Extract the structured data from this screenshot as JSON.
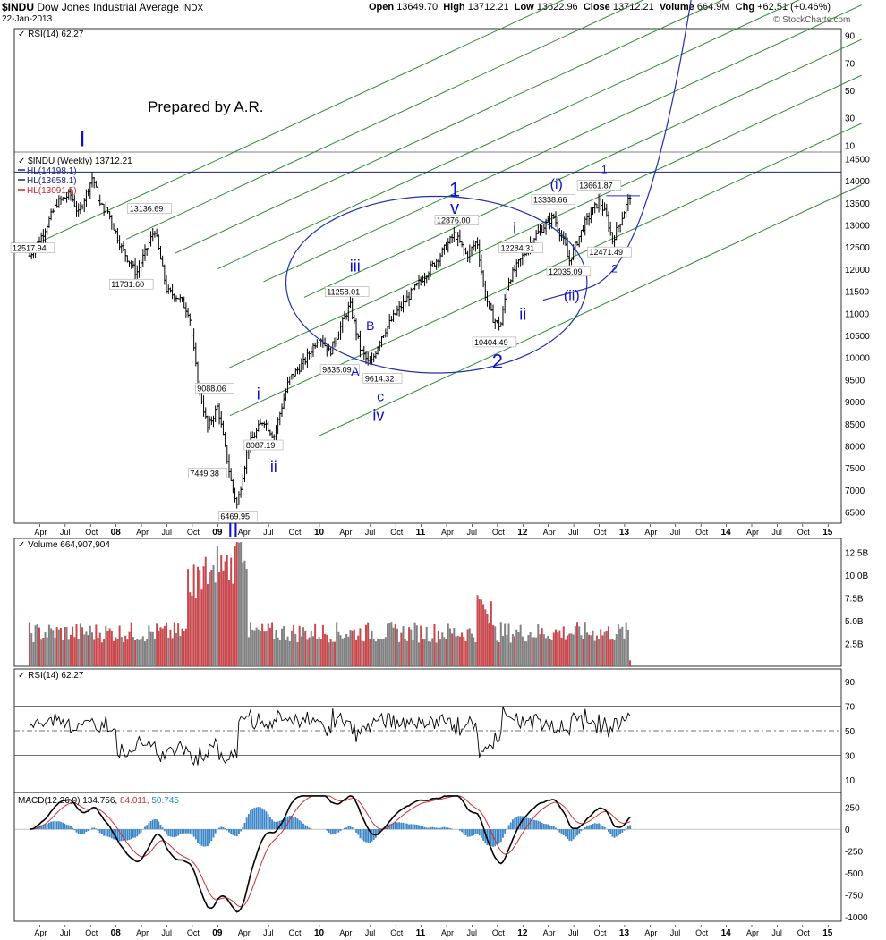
{
  "header": {
    "symbol": "$INDU",
    "name": "Dow Jones Industrial Average",
    "exchange": "INDX",
    "date": "22-Jan-2013",
    "open_label": "Open",
    "open": "13649.70",
    "high_label": "High",
    "high": "13712.21",
    "low_label": "Low",
    "low": "13622.96",
    "close_label": "Close",
    "close": "13712.21",
    "volume_label": "Volume",
    "volume": "664.9M",
    "chg_label": "Chg",
    "chg": "+62.51 (+0.46%)",
    "watermark": "© StockCharts.com"
  },
  "annotation_note": "Prepared by A.R.",
  "chart_data": [
    {
      "type": "line",
      "panel": "rsi-top",
      "title": "RSI(14) 62.27",
      "y_ticks": [
        90,
        70,
        50,
        30,
        10
      ],
      "ylim": [
        5,
        95
      ]
    },
    {
      "type": "candlestick",
      "panel": "price",
      "title": "$INDU (Weekly) 13712.21",
      "legend": [
        {
          "label": "HL(14198.1)",
          "color": "#1a237e"
        },
        {
          "label": "HL(13658.1)",
          "color": "#1a237e"
        },
        {
          "label": "HL(13091.5)",
          "color": "#c62828"
        }
      ],
      "ylim": [
        6250,
        14650
      ],
      "y_ticks": [
        6500,
        7000,
        7500,
        8000,
        8500,
        9000,
        9500,
        10000,
        10500,
        11000,
        11500,
        12000,
        12500,
        13000,
        13500,
        14000,
        14500
      ],
      "horizontal_line": 14198.1,
      "close_series_anchors": [
        {
          "t": 2007.15,
          "v": 12300
        },
        {
          "t": 2007.28,
          "v": 12800
        },
        {
          "t": 2007.42,
          "v": 13500
        },
        {
          "t": 2007.55,
          "v": 13700
        },
        {
          "t": 2007.63,
          "v": 13250
        },
        {
          "t": 2007.77,
          "v": 14100
        },
        {
          "t": 2007.84,
          "v": 13450
        },
        {
          "t": 2007.92,
          "v": 13300
        },
        {
          "t": 2008.05,
          "v": 12500
        },
        {
          "t": 2008.2,
          "v": 11900
        },
        {
          "t": 2008.38,
          "v": 12900
        },
        {
          "t": 2008.5,
          "v": 11500
        },
        {
          "t": 2008.62,
          "v": 11350
        },
        {
          "t": 2008.72,
          "v": 11000
        },
        {
          "t": 2008.8,
          "v": 9500
        },
        {
          "t": 2008.9,
          "v": 8400
        },
        {
          "t": 2009.0,
          "v": 8900
        },
        {
          "t": 2009.13,
          "v": 7200
        },
        {
          "t": 2009.19,
          "v": 6650
        },
        {
          "t": 2009.3,
          "v": 8000
        },
        {
          "t": 2009.45,
          "v": 8600
        },
        {
          "t": 2009.55,
          "v": 8200
        },
        {
          "t": 2009.7,
          "v": 9500
        },
        {
          "t": 2009.85,
          "v": 9900
        },
        {
          "t": 2010.0,
          "v": 10500
        },
        {
          "t": 2010.1,
          "v": 10100
        },
        {
          "t": 2010.3,
          "v": 11200
        },
        {
          "t": 2010.4,
          "v": 10200
        },
        {
          "t": 2010.5,
          "v": 9800
        },
        {
          "t": 2010.6,
          "v": 10450
        },
        {
          "t": 2010.75,
          "v": 11000
        },
        {
          "t": 2010.95,
          "v": 11600
        },
        {
          "t": 2011.15,
          "v": 12200
        },
        {
          "t": 2011.33,
          "v": 12800
        },
        {
          "t": 2011.45,
          "v": 12300
        },
        {
          "t": 2011.55,
          "v": 12650
        },
        {
          "t": 2011.62,
          "v": 11500
        },
        {
          "t": 2011.7,
          "v": 10900
        },
        {
          "t": 2011.78,
          "v": 10700
        },
        {
          "t": 2011.85,
          "v": 11700
        },
        {
          "t": 2011.95,
          "v": 12100
        },
        {
          "t": 2012.1,
          "v": 12700
        },
        {
          "t": 2012.3,
          "v": 13200
        },
        {
          "t": 2012.42,
          "v": 12500
        },
        {
          "t": 2012.45,
          "v": 12150
        },
        {
          "t": 2012.6,
          "v": 13000
        },
        {
          "t": 2012.75,
          "v": 13550
        },
        {
          "t": 2012.82,
          "v": 13200
        },
        {
          "t": 2012.88,
          "v": 12650
        },
        {
          "t": 2012.97,
          "v": 13150
        },
        {
          "t": 2013.06,
          "v": 13712
        }
      ],
      "price_labels": [
        {
          "text": "12517.94",
          "t": 2007.18,
          "v": 12430
        },
        {
          "text": "13136.69",
          "t": 2008.33,
          "v": 13320
        },
        {
          "text": "11731.60",
          "t": 2008.15,
          "v": 11610
        },
        {
          "text": "9088.06",
          "t": 2008.97,
          "v": 9260
        },
        {
          "text": "7449.38",
          "t": 2008.9,
          "v": 7330
        },
        {
          "text": "6469.95",
          "t": 2009.2,
          "v": 6360
        },
        {
          "text": "8087.19",
          "t": 2009.45,
          "v": 7970
        },
        {
          "text": "11258.01",
          "t": 2010.27,
          "v": 11440
        },
        {
          "text": "9835.09",
          "t": 2010.2,
          "v": 9680
        },
        {
          "text": "9614.32",
          "t": 2010.62,
          "v": 9480
        },
        {
          "text": "12876.00",
          "t": 2011.35,
          "v": 13060
        },
        {
          "text": "10404.49",
          "t": 2011.72,
          "v": 10300
        },
        {
          "text": "12284.31",
          "t": 2011.98,
          "v": 12430
        },
        {
          "text": "13338.66",
          "t": 2012.3,
          "v": 13530
        },
        {
          "text": "13661.87",
          "t": 2012.75,
          "v": 13850
        },
        {
          "text": "12035.09",
          "t": 2012.45,
          "v": 11900
        },
        {
          "text": "12471.49",
          "t": 2012.85,
          "v": 12340
        }
      ],
      "wave_labels": [
        {
          "text": "I",
          "t": 2007.67,
          "v": 14780,
          "size": 24
        },
        {
          "text": "II",
          "t": 2009.15,
          "v": 5950,
          "size": 22
        },
        {
          "text": "1",
          "t": 2011.33,
          "v": 13650,
          "size": 22
        },
        {
          "text": "v",
          "t": 2011.33,
          "v": 13250,
          "size": 20
        },
        {
          "text": "2",
          "t": 2011.75,
          "v": 9760,
          "size": 22
        },
        {
          "text": "i",
          "t": 2009.4,
          "v": 9050,
          "size": 18
        },
        {
          "text": "ii",
          "t": 2009.55,
          "v": 7400,
          "size": 18
        },
        {
          "text": "iii",
          "t": 2010.35,
          "v": 11950,
          "size": 18
        },
        {
          "text": "iv",
          "t": 2010.58,
          "v": 8570,
          "size": 18
        },
        {
          "text": "B",
          "t": 2010.5,
          "v": 10620,
          "size": 14
        },
        {
          "text": "A",
          "t": 2010.35,
          "v": 9590,
          "size": 14
        },
        {
          "text": "c",
          "t": 2010.6,
          "v": 9010,
          "size": 16
        },
        {
          "text": "i",
          "t": 2011.92,
          "v": 12800,
          "size": 18
        },
        {
          "text": "ii",
          "t": 2012.0,
          "v": 10850,
          "size": 18
        },
        {
          "text": "(i)",
          "t": 2012.33,
          "v": 13820,
          "size": 16
        },
        {
          "text": "(ii)",
          "t": 2012.48,
          "v": 11300,
          "size": 16
        },
        {
          "text": "1",
          "t": 2012.8,
          "v": 14170,
          "size": 12
        },
        {
          "text": "2",
          "t": 2012.9,
          "v": 11930,
          "size": 12
        }
      ]
    },
    {
      "type": "bar",
      "panel": "volume",
      "title": "Volume 664,907,904",
      "y_ticks_labels": [
        "12.5B",
        "10.0B",
        "7.5B",
        "5.0B",
        "2.5B"
      ],
      "y_ticks": [
        12.5,
        10.0,
        7.5,
        5.0,
        2.5
      ],
      "ylim": [
        0,
        14
      ],
      "unit": "B"
    },
    {
      "type": "line",
      "panel": "rsi",
      "title": "RSI(14) 62.27",
      "y_ticks": [
        90,
        70,
        50,
        30,
        10
      ],
      "ylim": [
        0,
        100
      ],
      "reference_lines": [
        70,
        50,
        30
      ]
    },
    {
      "type": "line",
      "panel": "macd",
      "title_parts": [
        {
          "text": "MACD(12,26,9) 134.756,",
          "color": "#000000"
        },
        {
          "text": "84.011,",
          "color": "#d32f2f"
        },
        {
          "text": "50.745",
          "color": "#1e88e5"
        }
      ],
      "y_ticks": [
        250,
        0,
        -250,
        -500,
        -750,
        -1000
      ],
      "ylim": [
        -1050,
        420
      ]
    }
  ],
  "time_axis": [
    {
      "label": "Apr",
      "t": 2007.25
    },
    {
      "label": "Jul",
      "t": 2007.5
    },
    {
      "label": "Oct",
      "t": 2007.75
    },
    {
      "label": "08",
      "t": 2008.0
    },
    {
      "label": "Apr",
      "t": 2008.25
    },
    {
      "label": "Jul",
      "t": 2008.5
    },
    {
      "label": "Oct",
      "t": 2008.75
    },
    {
      "label": "09",
      "t": 2009.0
    },
    {
      "label": "Apr",
      "t": 2009.25
    },
    {
      "label": "Jul",
      "t": 2009.5
    },
    {
      "label": "Oct",
      "t": 2009.75
    },
    {
      "label": "10",
      "t": 2010.0
    },
    {
      "label": "Apr",
      "t": 2010.25
    },
    {
      "label": "Jul",
      "t": 2010.5
    },
    {
      "label": "Oct",
      "t": 2010.75
    },
    {
      "label": "11",
      "t": 2011.0
    },
    {
      "label": "Apr",
      "t": 2011.25
    },
    {
      "label": "Jul",
      "t": 2011.5
    },
    {
      "label": "Oct",
      "t": 2011.75
    },
    {
      "label": "12",
      "t": 2012.0
    },
    {
      "label": "Apr",
      "t": 2012.25
    },
    {
      "label": "Jul",
      "t": 2012.5
    },
    {
      "label": "Oct",
      "t": 2012.75
    },
    {
      "label": "13",
      "t": 2013.0
    },
    {
      "label": "Apr",
      "t": 2013.25
    },
    {
      "label": "Jul",
      "t": 2013.5
    },
    {
      "label": "Oct",
      "t": 2013.75
    },
    {
      "label": "14",
      "t": 2014.0
    },
    {
      "label": "Apr",
      "t": 2014.25
    },
    {
      "label": "Jul",
      "t": 2014.5
    },
    {
      "label": "Oct",
      "t": 2014.75
    },
    {
      "label": "15",
      "t": 2015.0
    }
  ],
  "colors": {
    "channel": "#2e8b2e",
    "wave_label": "#1010c8",
    "curve": "#2030b0",
    "vol_up": "#808080",
    "vol_down": "#c8484d",
    "macd_hist": "#3a86c8"
  }
}
